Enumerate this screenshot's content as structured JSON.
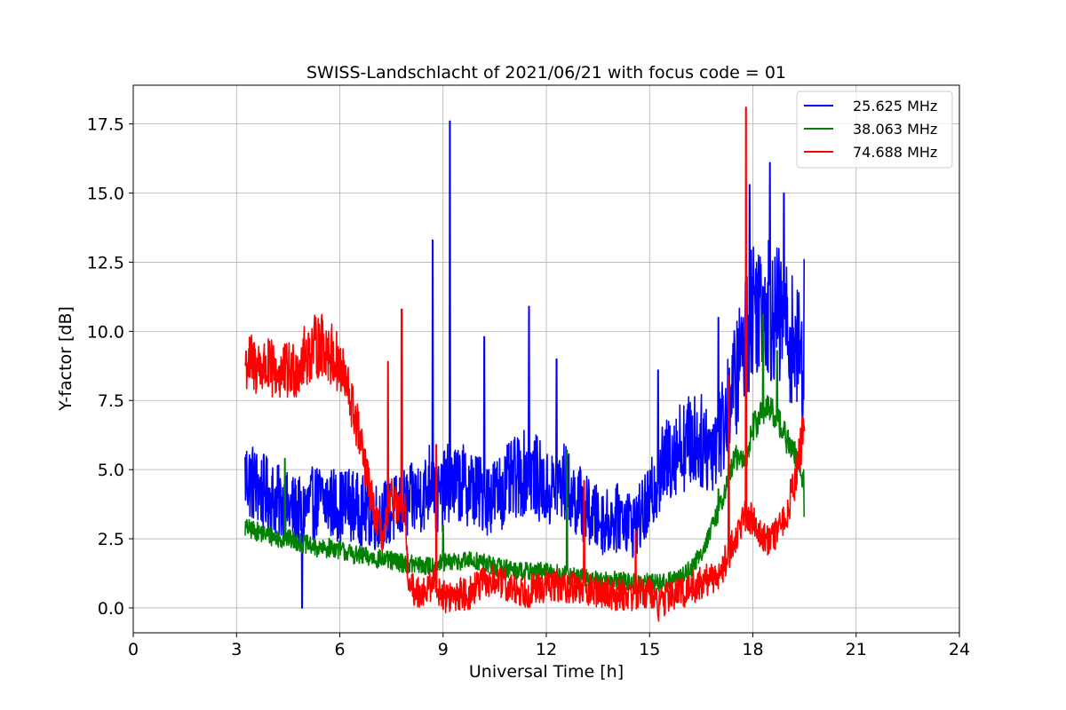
{
  "chart_data": {
    "type": "line",
    "title": "SWISS-Landschlacht of 2021/06/21 with focus code = 01",
    "xlabel": "Universal Time [h]",
    "ylabel": "Y-factor [dB]",
    "xlim": [
      0,
      24
    ],
    "ylim": [
      -0.9,
      18.9
    ],
    "xticks": [
      0,
      3,
      6,
      9,
      12,
      15,
      18,
      21,
      24
    ],
    "xtick_labels": [
      "0",
      "3",
      "6",
      "9",
      "12",
      "15",
      "18",
      "21",
      "24"
    ],
    "yticks": [
      0.0,
      2.5,
      5.0,
      7.5,
      10.0,
      12.5,
      15.0,
      17.5
    ],
    "ytick_labels": [
      "0.0",
      "2.5",
      "5.0",
      "7.5",
      "10.0",
      "12.5",
      "15.0",
      "17.5"
    ],
    "grid": true,
    "legend_position": "top-right",
    "series": [
      {
        "name": "25.625 MHz",
        "color": "#0000ff",
        "x": [
          3.25,
          3.5,
          3.75,
          4.0,
          4.25,
          4.5,
          4.75,
          4.9,
          5.0,
          5.25,
          5.5,
          5.75,
          6.0,
          6.25,
          6.5,
          6.75,
          7.0,
          7.25,
          7.5,
          7.75,
          8.0,
          8.25,
          8.5,
          8.7,
          8.8,
          9.0,
          9.2,
          9.3,
          9.5,
          9.75,
          10.0,
          10.25,
          10.5,
          10.75,
          11.0,
          11.25,
          11.5,
          11.75,
          12.0,
          12.25,
          12.5,
          12.75,
          13.0,
          13.25,
          13.5,
          13.75,
          14.0,
          14.25,
          14.5,
          14.75,
          15.0,
          15.25,
          15.5,
          15.75,
          16.0,
          16.25,
          16.5,
          16.75,
          17.0,
          17.25,
          17.5,
          17.75,
          18.0,
          18.25,
          18.5,
          18.75,
          19.0,
          19.25,
          19.5
        ],
        "y": [
          4.8,
          4.5,
          4.2,
          4.0,
          3.8,
          3.6,
          3.5,
          3.4,
          3.6,
          3.8,
          3.9,
          3.8,
          3.7,
          3.8,
          3.6,
          3.5,
          3.3,
          3.4,
          3.5,
          3.6,
          3.8,
          4.0,
          4.2,
          5.0,
          3.8,
          4.2,
          4.6,
          4.4,
          4.5,
          4.4,
          4.2,
          4.0,
          4.1,
          4.3,
          4.6,
          4.8,
          5.0,
          4.7,
          4.2,
          4.3,
          4.6,
          4.0,
          3.8,
          3.4,
          3.2,
          3.1,
          3.2,
          3.4,
          3.0,
          3.3,
          3.8,
          4.8,
          5.3,
          5.8,
          5.9,
          6.1,
          6.0,
          5.8,
          6.3,
          7.0,
          8.3,
          9.5,
          11.0,
          11.2,
          10.8,
          10.5,
          10.0,
          9.5,
          8.5
        ],
        "spikes": [
          [
            4.9,
            0.0
          ],
          [
            8.7,
            13.3
          ],
          [
            9.2,
            17.6
          ],
          [
            10.2,
            9.8
          ],
          [
            11.5,
            10.9
          ],
          [
            12.3,
            9.0
          ],
          [
            15.25,
            8.6
          ],
          [
            17.0,
            10.5
          ],
          [
            17.9,
            15.3
          ],
          [
            18.5,
            16.1
          ],
          [
            18.9,
            15.0
          ],
          [
            19.5,
            12.6
          ]
        ],
        "noise": 1.2
      },
      {
        "name": "38.063 MHz",
        "color": "#008000",
        "x": [
          3.25,
          3.5,
          3.75,
          4.0,
          4.25,
          4.5,
          4.75,
          5.0,
          5.25,
          5.5,
          5.75,
          6.0,
          6.5,
          7.0,
          7.5,
          8.0,
          8.5,
          9.0,
          9.5,
          10.0,
          10.5,
          11.0,
          11.5,
          12.0,
          12.5,
          13.0,
          13.5,
          14.0,
          14.5,
          15.0,
          15.5,
          16.0,
          16.25,
          16.5,
          16.75,
          17.0,
          17.25,
          17.5,
          17.75,
          18.0,
          18.25,
          18.5,
          18.75,
          19.0,
          19.25,
          19.5
        ],
        "y": [
          2.9,
          2.8,
          2.7,
          2.6,
          2.5,
          2.5,
          2.4,
          2.3,
          2.2,
          2.1,
          2.2,
          2.1,
          1.9,
          1.8,
          1.7,
          1.6,
          1.5,
          1.6,
          1.7,
          1.7,
          1.5,
          1.4,
          1.3,
          1.3,
          1.2,
          1.1,
          1.0,
          1.0,
          0.9,
          0.9,
          0.9,
          1.2,
          1.5,
          2.0,
          2.7,
          3.5,
          4.5,
          5.5,
          5.2,
          6.5,
          7.0,
          7.2,
          6.8,
          6.0,
          5.5,
          4.5
        ],
        "spikes": [
          [
            4.4,
            5.4
          ],
          [
            9.0,
            3.0
          ],
          [
            12.6,
            5.7
          ],
          [
            17.0,
            4.3
          ],
          [
            18.3,
            10.6
          ],
          [
            18.7,
            9.3
          ],
          [
            19.5,
            3.3
          ]
        ],
        "noise": 0.35
      },
      {
        "name": "74.688 MHz",
        "color": "#ff0000",
        "x": [
          3.25,
          3.5,
          3.75,
          4.0,
          4.25,
          4.5,
          4.75,
          5.0,
          5.25,
          5.5,
          5.75,
          6.0,
          6.25,
          6.5,
          6.75,
          7.0,
          7.25,
          7.5,
          7.75,
          7.9,
          8.0,
          8.25,
          8.5,
          8.75,
          9.0,
          9.25,
          9.5,
          9.75,
          10.0,
          10.5,
          11.0,
          11.5,
          12.0,
          12.5,
          13.0,
          13.5,
          14.0,
          14.5,
          15.0,
          15.25,
          15.5,
          16.0,
          16.5,
          17.0,
          17.25,
          17.5,
          17.75,
          18.0,
          18.25,
          18.5,
          18.75,
          19.0,
          19.25,
          19.5
        ],
        "y": [
          8.9,
          8.8,
          8.7,
          8.6,
          8.5,
          8.5,
          8.7,
          9.1,
          9.4,
          9.5,
          9.2,
          8.7,
          7.8,
          6.6,
          5.0,
          3.5,
          2.5,
          4.0,
          3.5,
          3.5,
          0.7,
          0.6,
          0.6,
          1.0,
          0.4,
          0.4,
          0.5,
          0.5,
          0.8,
          1.0,
          0.7,
          0.6,
          0.8,
          0.8,
          0.7,
          0.6,
          0.5,
          0.5,
          0.6,
          0.1,
          0.4,
          0.6,
          0.9,
          1.2,
          1.8,
          2.5,
          3.4,
          3.2,
          2.7,
          2.4,
          2.8,
          3.5,
          4.8,
          6.5
        ],
        "spikes": [
          [
            7.4,
            8.9
          ],
          [
            7.8,
            10.8
          ],
          [
            8.8,
            5.9
          ],
          [
            13.1,
            4.6
          ],
          [
            14.6,
            2.8
          ],
          [
            17.3,
            8.4
          ],
          [
            17.8,
            18.1
          ]
        ],
        "noise": 0.6
      }
    ]
  }
}
